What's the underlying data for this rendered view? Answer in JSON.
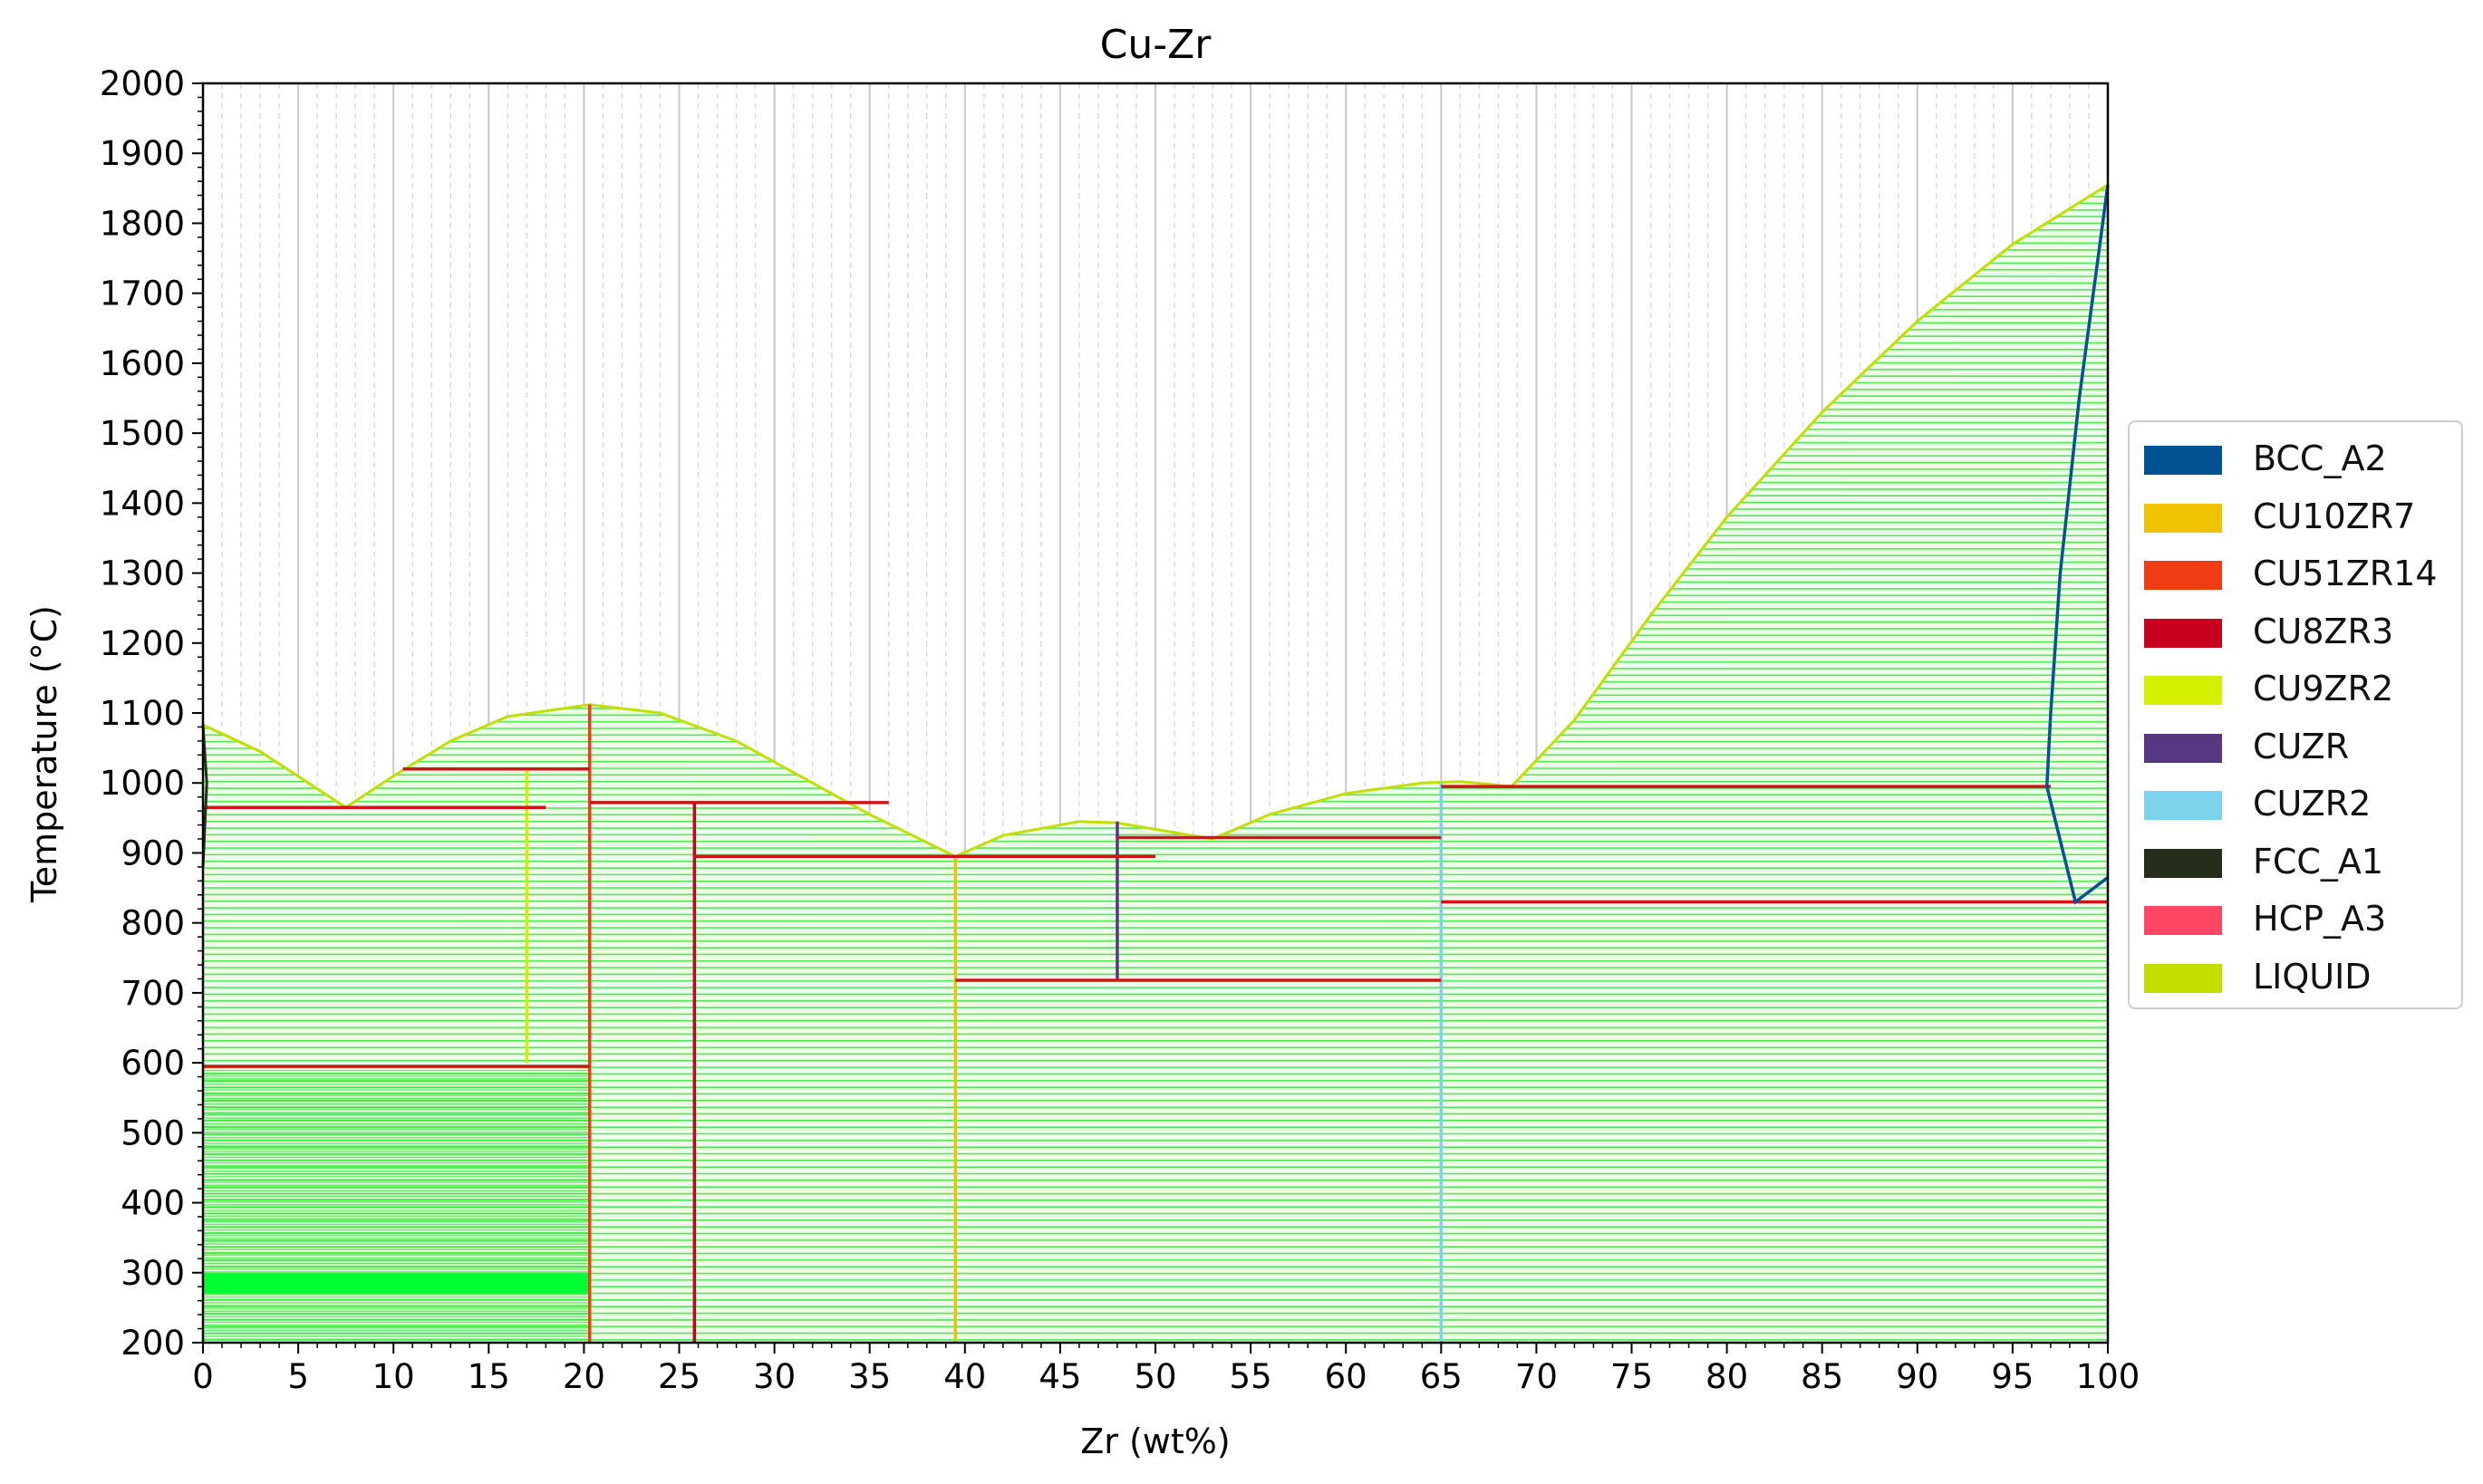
{
  "chart_data": {
    "type": "phase-diagram",
    "title": "Cu-Zr",
    "xlabel": "Zr (wt%)",
    "ylabel": "Temperature (°C)",
    "xlim": [
      0,
      100
    ],
    "ylim": [
      200,
      2000
    ],
    "xticks": [
      0,
      5,
      10,
      15,
      20,
      25,
      30,
      35,
      40,
      45,
      50,
      55,
      60,
      65,
      70,
      75,
      80,
      85,
      90,
      95,
      100
    ],
    "yticks": [
      200,
      300,
      400,
      500,
      600,
      700,
      800,
      900,
      1000,
      1100,
      1200,
      1300,
      1400,
      1500,
      1600,
      1700,
      1800,
      1900,
      2000
    ],
    "grid": true,
    "legend_position": "right",
    "legend": [
      {
        "name": "BCC_A2",
        "color": "#005293"
      },
      {
        "name": "CU10ZR7",
        "color": "#f0c300"
      },
      {
        "name": "CU51ZR14",
        "color": "#f03c14"
      },
      {
        "name": "CU8ZR3",
        "color": "#c8001e"
      },
      {
        "name": "CU9ZR2",
        "color": "#d2f000"
      },
      {
        "name": "CUZR",
        "color": "#553782"
      },
      {
        "name": "CUZR2",
        "color": "#7ed2ec"
      },
      {
        "name": "FCC_A1",
        "color": "#252d1b"
      },
      {
        "name": "HCP_A3",
        "color": "#ff4664"
      },
      {
        "name": "LIQUID",
        "color": "#c2df00"
      }
    ],
    "liquidus": [
      [
        0,
        1083
      ],
      [
        3,
        1045
      ],
      [
        7.5,
        965
      ],
      [
        10,
        1010
      ],
      [
        13,
        1060
      ],
      [
        16,
        1095
      ],
      [
        20.3,
        1112
      ],
      [
        24,
        1100
      ],
      [
        28,
        1060
      ],
      [
        32,
        1000
      ],
      [
        35,
        955
      ],
      [
        39.5,
        895
      ],
      [
        42,
        925
      ],
      [
        46,
        945
      ],
      [
        48,
        943
      ],
      [
        53,
        920
      ],
      [
        56,
        955
      ],
      [
        60,
        985
      ],
      [
        64,
        1000
      ],
      [
        66,
        1002
      ],
      [
        68.7,
        995
      ],
      [
        72,
        1090
      ],
      [
        76,
        1240
      ],
      [
        80,
        1380
      ],
      [
        85,
        1530
      ],
      [
        90,
        1660
      ],
      [
        95,
        1770
      ],
      [
        100,
        1855
      ]
    ],
    "isotherms": [
      {
        "x": [
          0,
          18
        ],
        "T": 965
      },
      {
        "x": [
          10.5,
          20.3
        ],
        "T": 1020
      },
      {
        "x": [
          20.3,
          36
        ],
        "T": 972
      },
      {
        "x": [
          25.8,
          39.5
        ],
        "T": 895
      },
      {
        "x": [
          39.5,
          50
        ],
        "T": 895
      },
      {
        "x": [
          48,
          65
        ],
        "T": 922
      },
      {
        "x": [
          39.5,
          65
        ],
        "T": 718
      },
      {
        "x": [
          65,
          97
        ],
        "T": 995
      },
      {
        "x": [
          65,
          100
        ],
        "T": 830
      },
      {
        "x": [
          0,
          20.3
        ],
        "T": 595
      }
    ],
    "compound_lines": [
      {
        "phase": "CU9ZR2",
        "x": 17,
        "T": [
          600,
          1020
        ]
      },
      {
        "phase": "CU51ZR14",
        "x": 20.3,
        "T": [
          200,
          1112
        ]
      },
      {
        "phase": "CU8ZR3",
        "x": 25.8,
        "T": [
          200,
          972
        ]
      },
      {
        "phase": "CU10ZR7",
        "x": 39.5,
        "T": [
          200,
          895
        ]
      },
      {
        "phase": "CUZR",
        "x": 48,
        "T": [
          718,
          945
        ]
      },
      {
        "phase": "CUZR2",
        "x": 65,
        "T": [
          200,
          1002
        ]
      }
    ],
    "bcc_boundary": [
      [
        100,
        1855
      ],
      [
        98.5,
        1550
      ],
      [
        97.5,
        1300
      ],
      [
        97,
        1100
      ],
      [
        96.8,
        995
      ],
      [
        98.3,
        830
      ],
      [
        100,
        865
      ]
    ],
    "fcc_boundary": [
      [
        0,
        1083
      ],
      [
        0.2,
        1000
      ],
      [
        0,
        880
      ]
    ]
  }
}
